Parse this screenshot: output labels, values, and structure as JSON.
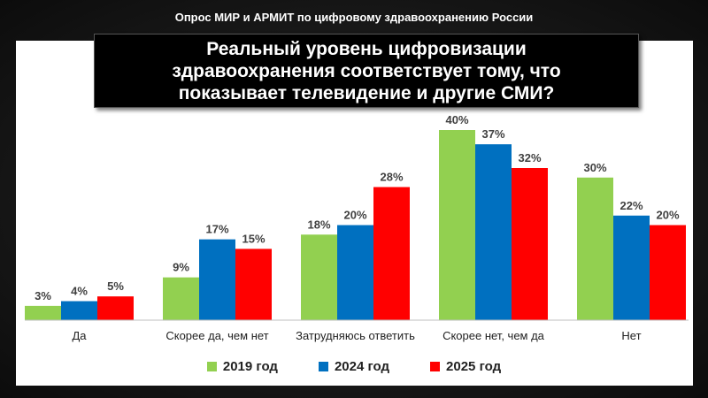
{
  "header": "Опрос  МИР и АРМИТ по цифровому здравоохранению России",
  "title": "Реальный уровень цифровизации\nздравоохранения соответствует тому, что\nпоказывает телевидение и другие СМИ?",
  "colors": {
    "2019": "#92d050",
    "2024": "#0070c0",
    "2025": "#ff0000"
  },
  "chart_data": {
    "type": "bar",
    "categories": [
      "Да",
      "Скорее да, чем нет",
      "Затрудняюсь ответить",
      "Скорее нет, чем да",
      "Нет"
    ],
    "series": [
      {
        "name": "2019 год",
        "values": [
          3,
          9,
          18,
          40,
          30
        ]
      },
      {
        "name": "2024 год",
        "values": [
          4,
          17,
          20,
          37,
          22
        ]
      },
      {
        "name": "2025 год",
        "values": [
          5,
          15,
          28,
          32,
          20
        ]
      }
    ],
    "value_labels": [
      [
        "3%",
        "9%",
        "18%",
        "40%",
        "30%"
      ],
      [
        "4%",
        "17%",
        "20%",
        "37%",
        "22%"
      ],
      [
        "5%",
        "15%",
        "28%",
        "32%",
        "20%"
      ]
    ],
    "title": "Реальный уровень цифровизации здравоохранения соответствует тому, что показывает телевидение и другие СМИ?",
    "xlabel": "",
    "ylabel": "",
    "ylim": [
      0,
      40
    ],
    "grid": false,
    "legend_position": "bottom"
  }
}
